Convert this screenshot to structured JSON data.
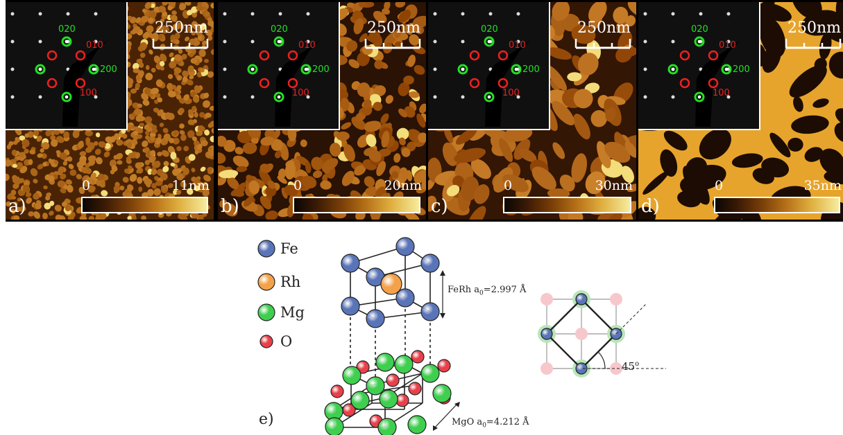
{
  "panels": [
    {
      "label": "a)",
      "scale_label": "250nm",
      "colorbar_min": "0",
      "colorbar_max": "11nm",
      "diffraction": {
        "idx_020": "020",
        "idx_010": "010",
        "idx_200": "200",
        "idx_100": "100"
      }
    },
    {
      "label": "b)",
      "scale_label": "250nm",
      "colorbar_min": "0",
      "colorbar_max": "20nm",
      "diffraction": {
        "idx_020": "020",
        "idx_010": "010",
        "idx_200": "200",
        "idx_100": "100"
      }
    },
    {
      "label": "c)",
      "scale_label": "250nm",
      "colorbar_min": "0",
      "colorbar_max": "30nm",
      "diffraction": {
        "idx_020": "020",
        "idx_010": "010",
        "idx_200": "200",
        "idx_100": "100"
      }
    },
    {
      "label": "d)",
      "scale_label": "250nm",
      "colorbar_min": "0",
      "colorbar_max": "35nm",
      "diffraction": {
        "idx_020": "020",
        "idx_010": "010",
        "idx_200": "200",
        "idx_100": "100"
      }
    }
  ],
  "structure": {
    "legend": [
      {
        "label": "Fe",
        "color": "#5a74b8"
      },
      {
        "label": "Rh",
        "color": "#f4a24a"
      },
      {
        "label": "Mg",
        "color": "#3fcf4f"
      },
      {
        "label": "O",
        "color": "#e8404a"
      }
    ],
    "ferh_note": "FeRh a",
    "ferh_sub": "0",
    "ferh_value": "=2.997 Å",
    "mgo_note": "MgO a",
    "mgo_sub": "0",
    "mgo_value": "=4.212 Å",
    "angle": "45",
    "angle_unit": "o",
    "panel_label": "e)"
  },
  "colors": {
    "fe": "#5a74b8",
    "rh": "#f4a24a",
    "mg": "#3fcf4f",
    "o": "#e8404a",
    "index_green": "#22e022",
    "index_red": "#ee2020"
  }
}
